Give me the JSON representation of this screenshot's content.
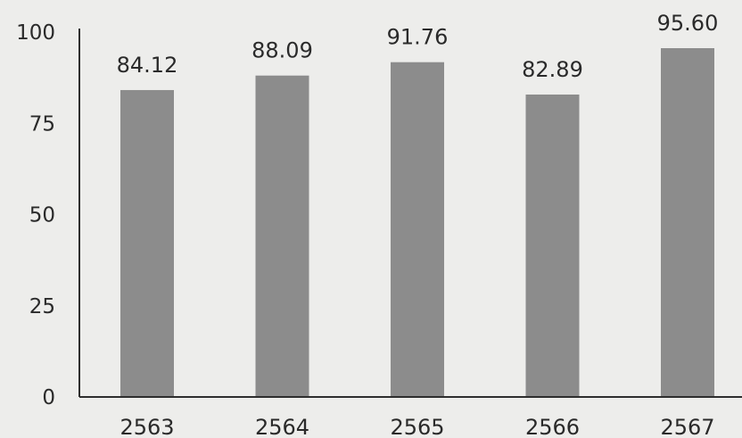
{
  "chart_data": {
    "type": "bar",
    "categories": [
      "2563",
      "2564",
      "2565",
      "2566",
      "2567"
    ],
    "values": [
      84.12,
      88.09,
      91.76,
      82.89,
      95.6
    ],
    "data_labels": [
      "84.12",
      "88.09",
      "91.76",
      "82.89",
      "95.60"
    ],
    "y_ticks": [
      "0",
      "25",
      "50",
      "75",
      "100"
    ],
    "ylim": [
      0,
      100
    ],
    "grid": false,
    "bar_color": "#8c8c8c"
  }
}
